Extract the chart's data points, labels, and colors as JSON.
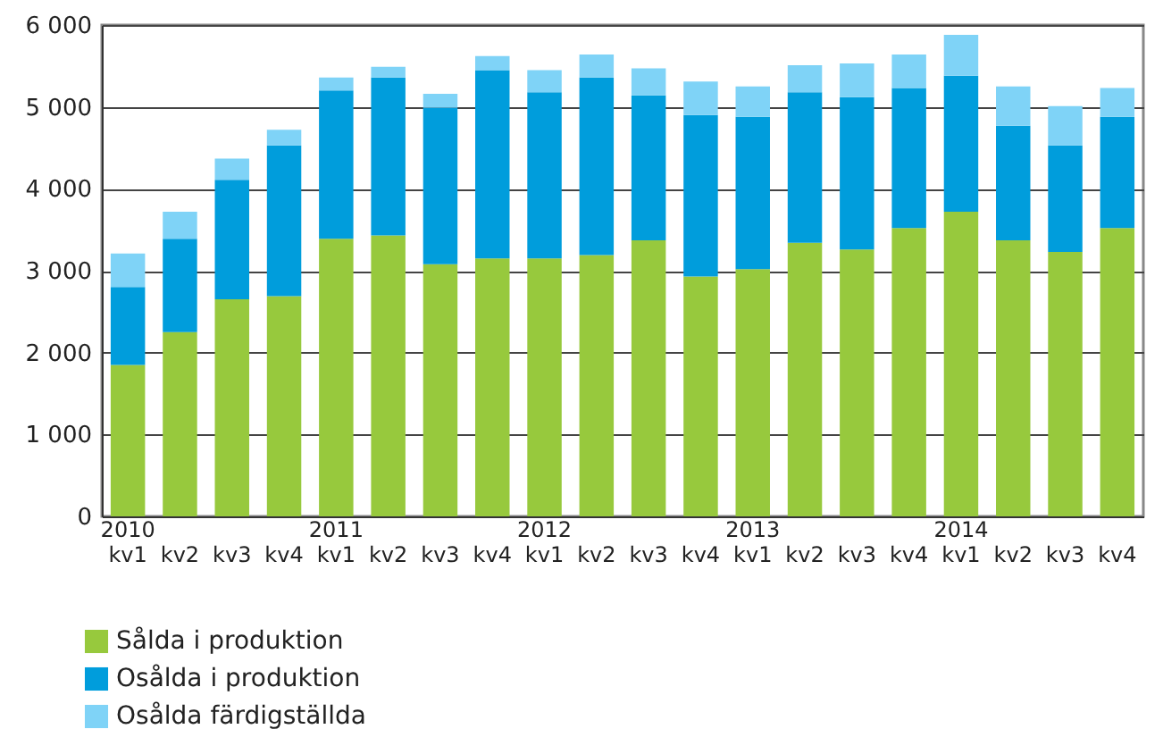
{
  "chart_data": {
    "type": "bar",
    "stacked": true,
    "categories": [
      "2010\nkv1",
      "kv2",
      "kv3",
      "kv4",
      "2011\nkv1",
      "kv2",
      "kv3",
      "kv4",
      "2012\nkv1",
      "kv2",
      "kv3",
      "kv4",
      "2013\nkv1",
      "kv2",
      "kv3",
      "kv4",
      "2014\nkv1",
      "kv2",
      "kv3",
      "kv4"
    ],
    "series": [
      {
        "name": "Sålda i produktion",
        "color": "#97c93d",
        "values": [
          1850,
          2250,
          2650,
          2690,
          3390,
          3430,
          3080,
          3150,
          3150,
          3190,
          3370,
          2930,
          3020,
          3340,
          3260,
          3520,
          3720,
          3370,
          3230,
          3520
        ]
      },
      {
        "name": "Osålda i produktion",
        "color": "#009ddc",
        "values": [
          950,
          1140,
          1460,
          1840,
          1810,
          1930,
          1910,
          2300,
          2030,
          2170,
          1770,
          1970,
          1860,
          1840,
          1860,
          1710,
          1660,
          1400,
          1300,
          1360
        ]
      },
      {
        "name": "Osålda färdigställda",
        "color": "#7fd3f7",
        "values": [
          410,
          330,
          260,
          190,
          160,
          130,
          170,
          170,
          270,
          280,
          330,
          410,
          370,
          330,
          410,
          410,
          500,
          480,
          480,
          350
        ]
      }
    ],
    "ylim": [
      0,
      6000
    ],
    "yticks": [
      0,
      {
        "value": 1000,
        "label": "1 000"
      },
      {
        "value": 2000,
        "label": "2 000"
      },
      {
        "value": 3000,
        "label": "3 000"
      },
      {
        "value": 4000,
        "label": "4 000"
      },
      {
        "value": 5000,
        "label": "5 000"
      },
      {
        "value": 6000,
        "label": "6 000"
      }
    ],
    "grid": "y",
    "legend": "bottom left"
  }
}
